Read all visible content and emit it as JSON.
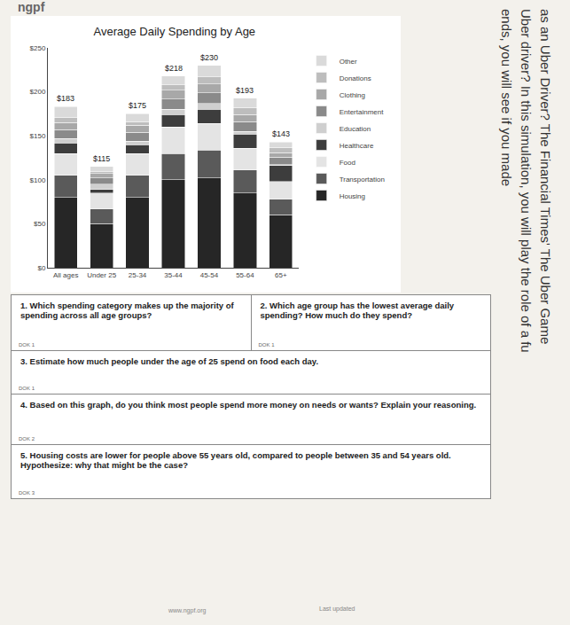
{
  "header": "ngpf",
  "chart_data": {
    "type": "bar",
    "title": "Average Daily Spending by Age",
    "stacked": true,
    "legend": "right",
    "categories": [
      "All ages",
      "Under 25",
      "25-34",
      "35-44",
      "45-54",
      "55-64",
      "65+"
    ],
    "series": [
      {
        "name": "Housing",
        "color": "#262626",
        "values": [
          80,
          50,
          80,
          100,
          102,
          85,
          60
        ]
      },
      {
        "name": "Transportation",
        "color": "#5a5a5a",
        "values": [
          25,
          17,
          25,
          30,
          32,
          26,
          18
        ]
      },
      {
        "name": "Food",
        "color": "#e4e4e4",
        "values": [
          25,
          18,
          25,
          30,
          30,
          25,
          20
        ]
      },
      {
        "name": "Healthcare",
        "color": "#3d3d3d",
        "values": [
          12,
          4,
          10,
          14,
          16,
          16,
          18
        ]
      },
      {
        "name": "Education",
        "color": "#cfcfcf",
        "values": [
          5,
          6,
          4,
          6,
          7,
          3,
          1
        ]
      },
      {
        "name": "Entertainment",
        "color": "#8a8a8a",
        "values": [
          10,
          7,
          10,
          12,
          12,
          11,
          9
        ]
      },
      {
        "name": "Clothing",
        "color": "#a8a8a8",
        "values": [
          8,
          5,
          8,
          10,
          10,
          8,
          5
        ]
      },
      {
        "name": "Donations",
        "color": "#bdbdbd",
        "values": [
          6,
          2,
          4,
          6,
          8,
          8,
          6
        ]
      },
      {
        "name": "Other",
        "color": "#dadada",
        "values": [
          12,
          6,
          9,
          10,
          13,
          11,
          6
        ]
      }
    ],
    "totals": [
      183,
      115,
      175,
      218,
      230,
      193,
      143
    ],
    "total_labels": [
      "$183",
      "$115",
      "$175",
      "$218",
      "$230",
      "$193",
      "$143"
    ],
    "ylim": [
      0,
      250
    ],
    "yticks": [
      {
        "value": 0,
        "label": "$0"
      },
      {
        "value": 50,
        "label": "$50"
      },
      {
        "value": 100,
        "label": "$100"
      },
      {
        "value": 150,
        "label": "$150"
      },
      {
        "value": 200,
        "label": "$200"
      },
      {
        "value": 250,
        "label": "$250"
      }
    ],
    "grid": false
  },
  "questions": [
    [
      {
        "number": "1.",
        "text": "Which spending category makes up the majority of spending across all age groups?",
        "dok": "DOK 1"
      },
      {
        "number": "2.",
        "text": "Which age group has the lowest average daily spending? How much do they spend?",
        "dok": "DOK 1"
      }
    ],
    [
      {
        "number": "3.",
        "text": "Estimate how much people under the age of 25 spend on food each day.",
        "dok": "DOK 1"
      }
    ],
    [
      {
        "number": "4.",
        "text": "Based on this graph, do you think most people spend more money on needs or wants? Explain your reasoning.",
        "dok": "DOK 2"
      }
    ],
    [
      {
        "number": "5.",
        "text": "Housing costs are lower for people above 55 years old, compared to people between 35 and 54 years old. Hypothesize: why that might be the case?",
        "dok": "DOK 3"
      }
    ]
  ],
  "side_text": [
    "as an Uber Driver? The Financial Times' The Uber Game",
    "Uber driver? In this simulation, you will play the role of a fu",
    "ends, you will see if you made"
  ],
  "footer": {
    "left": "www.ngpf.org",
    "right": "Last updated"
  }
}
